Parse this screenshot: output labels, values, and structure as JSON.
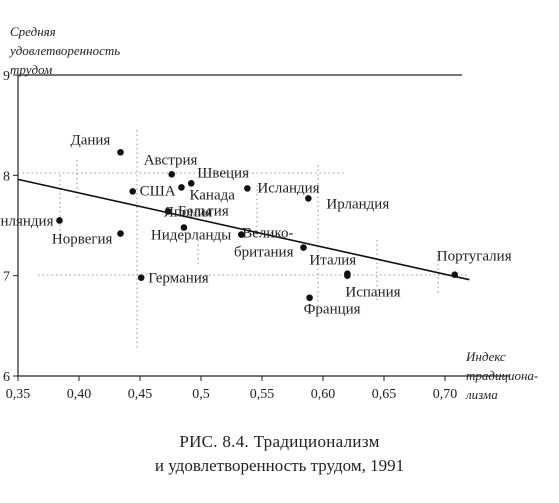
{
  "chart_data": {
    "type": "scatter",
    "ylabel": "Средняя\nудовлетворенность\nтрудом",
    "xlabel": "Индекс\nтрадициона-\nлизма",
    "xlim": [
      0.35,
      0.72
    ],
    "ylim": [
      6,
      9
    ],
    "x_tick_labels": [
      "0,35",
      "0,40",
      "0,45",
      "0,5",
      "0,55",
      "0,60",
      "0,65",
      "0,70"
    ],
    "x_ticks": [
      0.35,
      0.4,
      0.45,
      0.5,
      0.55,
      0.6,
      0.65,
      0.7
    ],
    "y_ticks": [
      6,
      7,
      8,
      9
    ],
    "y_tick_labels": [
      "6",
      "7",
      "8",
      "9"
    ],
    "points": [
      {
        "label": "Дания",
        "x": 0.434,
        "y": 8.23
      },
      {
        "label": "Австрия",
        "x": 0.476,
        "y": 8.01
      },
      {
        "label": "Швеция",
        "x": 0.492,
        "y": 7.92
      },
      {
        "label": "США",
        "x": 0.444,
        "y": 7.84
      },
      {
        "label": "Канада",
        "x": 0.484,
        "y": 7.88
      },
      {
        "label": "Исландия",
        "x": 0.538,
        "y": 7.87
      },
      {
        "label": "Ирландия",
        "x": 0.588,
        "y": 7.77
      },
      {
        "label": "Бельгия",
        "x": 0.473,
        "y": 7.64
      },
      {
        "label": "Финляндия",
        "x": 0.384,
        "y": 7.55
      },
      {
        "label": "Япония",
        "x": 0.486,
        "y": 7.48
      },
      {
        "label": "Норвегия",
        "x": 0.434,
        "y": 7.42
      },
      {
        "label": "Нидерланды",
        "x": 0.533,
        "y": 7.41
      },
      {
        "label": "Велико-\nбритания",
        "x": 0.584,
        "y": 7.28
      },
      {
        "label": "Италия",
        "x": 0.62,
        "y": 7.02
      },
      {
        "label": "Германия",
        "x": 0.451,
        "y": 6.98
      },
      {
        "label": "Испания",
        "x": 0.62,
        "y": 7.0
      },
      {
        "label": "Франция",
        "x": 0.589,
        "y": 6.78
      },
      {
        "label": "Португалия",
        "x": 0.708,
        "y": 7.01
      }
    ],
    "trend_line": {
      "x": [
        0.35,
        0.72
      ],
      "y": [
        7.96,
        6.96
      ]
    }
  },
  "caption": {
    "line1": "РИС. 8.4. Традиционализм",
    "line2": "и удовлетворенность трудом, 1991"
  }
}
